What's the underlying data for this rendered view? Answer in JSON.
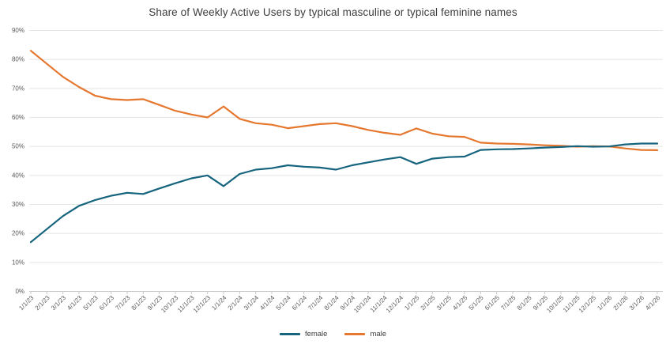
{
  "title": "Share of Weekly Active Users by typical masculine or typical feminine names",
  "colors": {
    "background": "#ffffff",
    "grid": "#e4e4e4",
    "axis": "#c9c9c9",
    "tick_label": "#595959",
    "title": "#3d3d3d",
    "legend_label": "#3d3d3d",
    "female_line": "#16647e",
    "male_line": "#e5772f"
  },
  "chart_data": {
    "type": "line",
    "title": "Share of Weekly Active Users by typical masculine or typical feminine names",
    "xlabel": "",
    "ylabel": "",
    "ylim": [
      0,
      90
    ],
    "ytick_step": 10,
    "ytick_suffix": "%",
    "grid": true,
    "legend_position": "bottom-center",
    "x": [
      "1/1/23",
      "2/1/23",
      "3/1/23",
      "4/1/23",
      "5/1/23",
      "6/1/23",
      "7/1/23",
      "8/1/23",
      "9/1/23",
      "10/1/23",
      "11/1/23",
      "12/1/23",
      "1/1/24",
      "2/1/24",
      "3/1/24",
      "4/1/24",
      "5/1/24",
      "6/1/24",
      "7/1/24",
      "8/1/24",
      "9/1/24",
      "10/1/24",
      "11/1/24",
      "12/1/24",
      "1/1/25",
      "2/1/25",
      "3/1/25",
      "4/1/25",
      "5/1/25",
      "6/1/25",
      "7/1/25",
      "8/1/25",
      "9/1/25",
      "10/1/25",
      "11/1/25",
      "12/1/25",
      "1/1/26",
      "2/1/26",
      "3/1/26",
      "4/1/26"
    ],
    "series": [
      {
        "name": "female",
        "color": "#16647e",
        "values": [
          17,
          21.5,
          26,
          29.5,
          31.5,
          33,
          34,
          33.6,
          35.5,
          37.3,
          39,
          40,
          36.3,
          40.5,
          42,
          42.5,
          43.5,
          43,
          42.7,
          42,
          43.5,
          44.5,
          45.5,
          46.3,
          44,
          45.8,
          46.3,
          46.5,
          48.8,
          49,
          49.1,
          49.3,
          49.6,
          49.8,
          50.1,
          49.9,
          50,
          50.7,
          51,
          51
        ]
      },
      {
        "name": "male",
        "color": "#e5772f",
        "values": [
          83,
          78.5,
          74,
          70.5,
          67.5,
          66.3,
          66,
          66.3,
          64.3,
          62.3,
          61,
          60,
          63.8,
          59.5,
          58,
          57.5,
          56.3,
          57,
          57.7,
          58,
          57,
          55.7,
          54.7,
          54,
          56.2,
          54.4,
          53.5,
          53.3,
          51.3,
          51,
          50.9,
          50.7,
          50.4,
          50.2,
          49.9,
          50.1,
          50,
          49.3,
          48.8,
          48.7
        ]
      }
    ]
  }
}
